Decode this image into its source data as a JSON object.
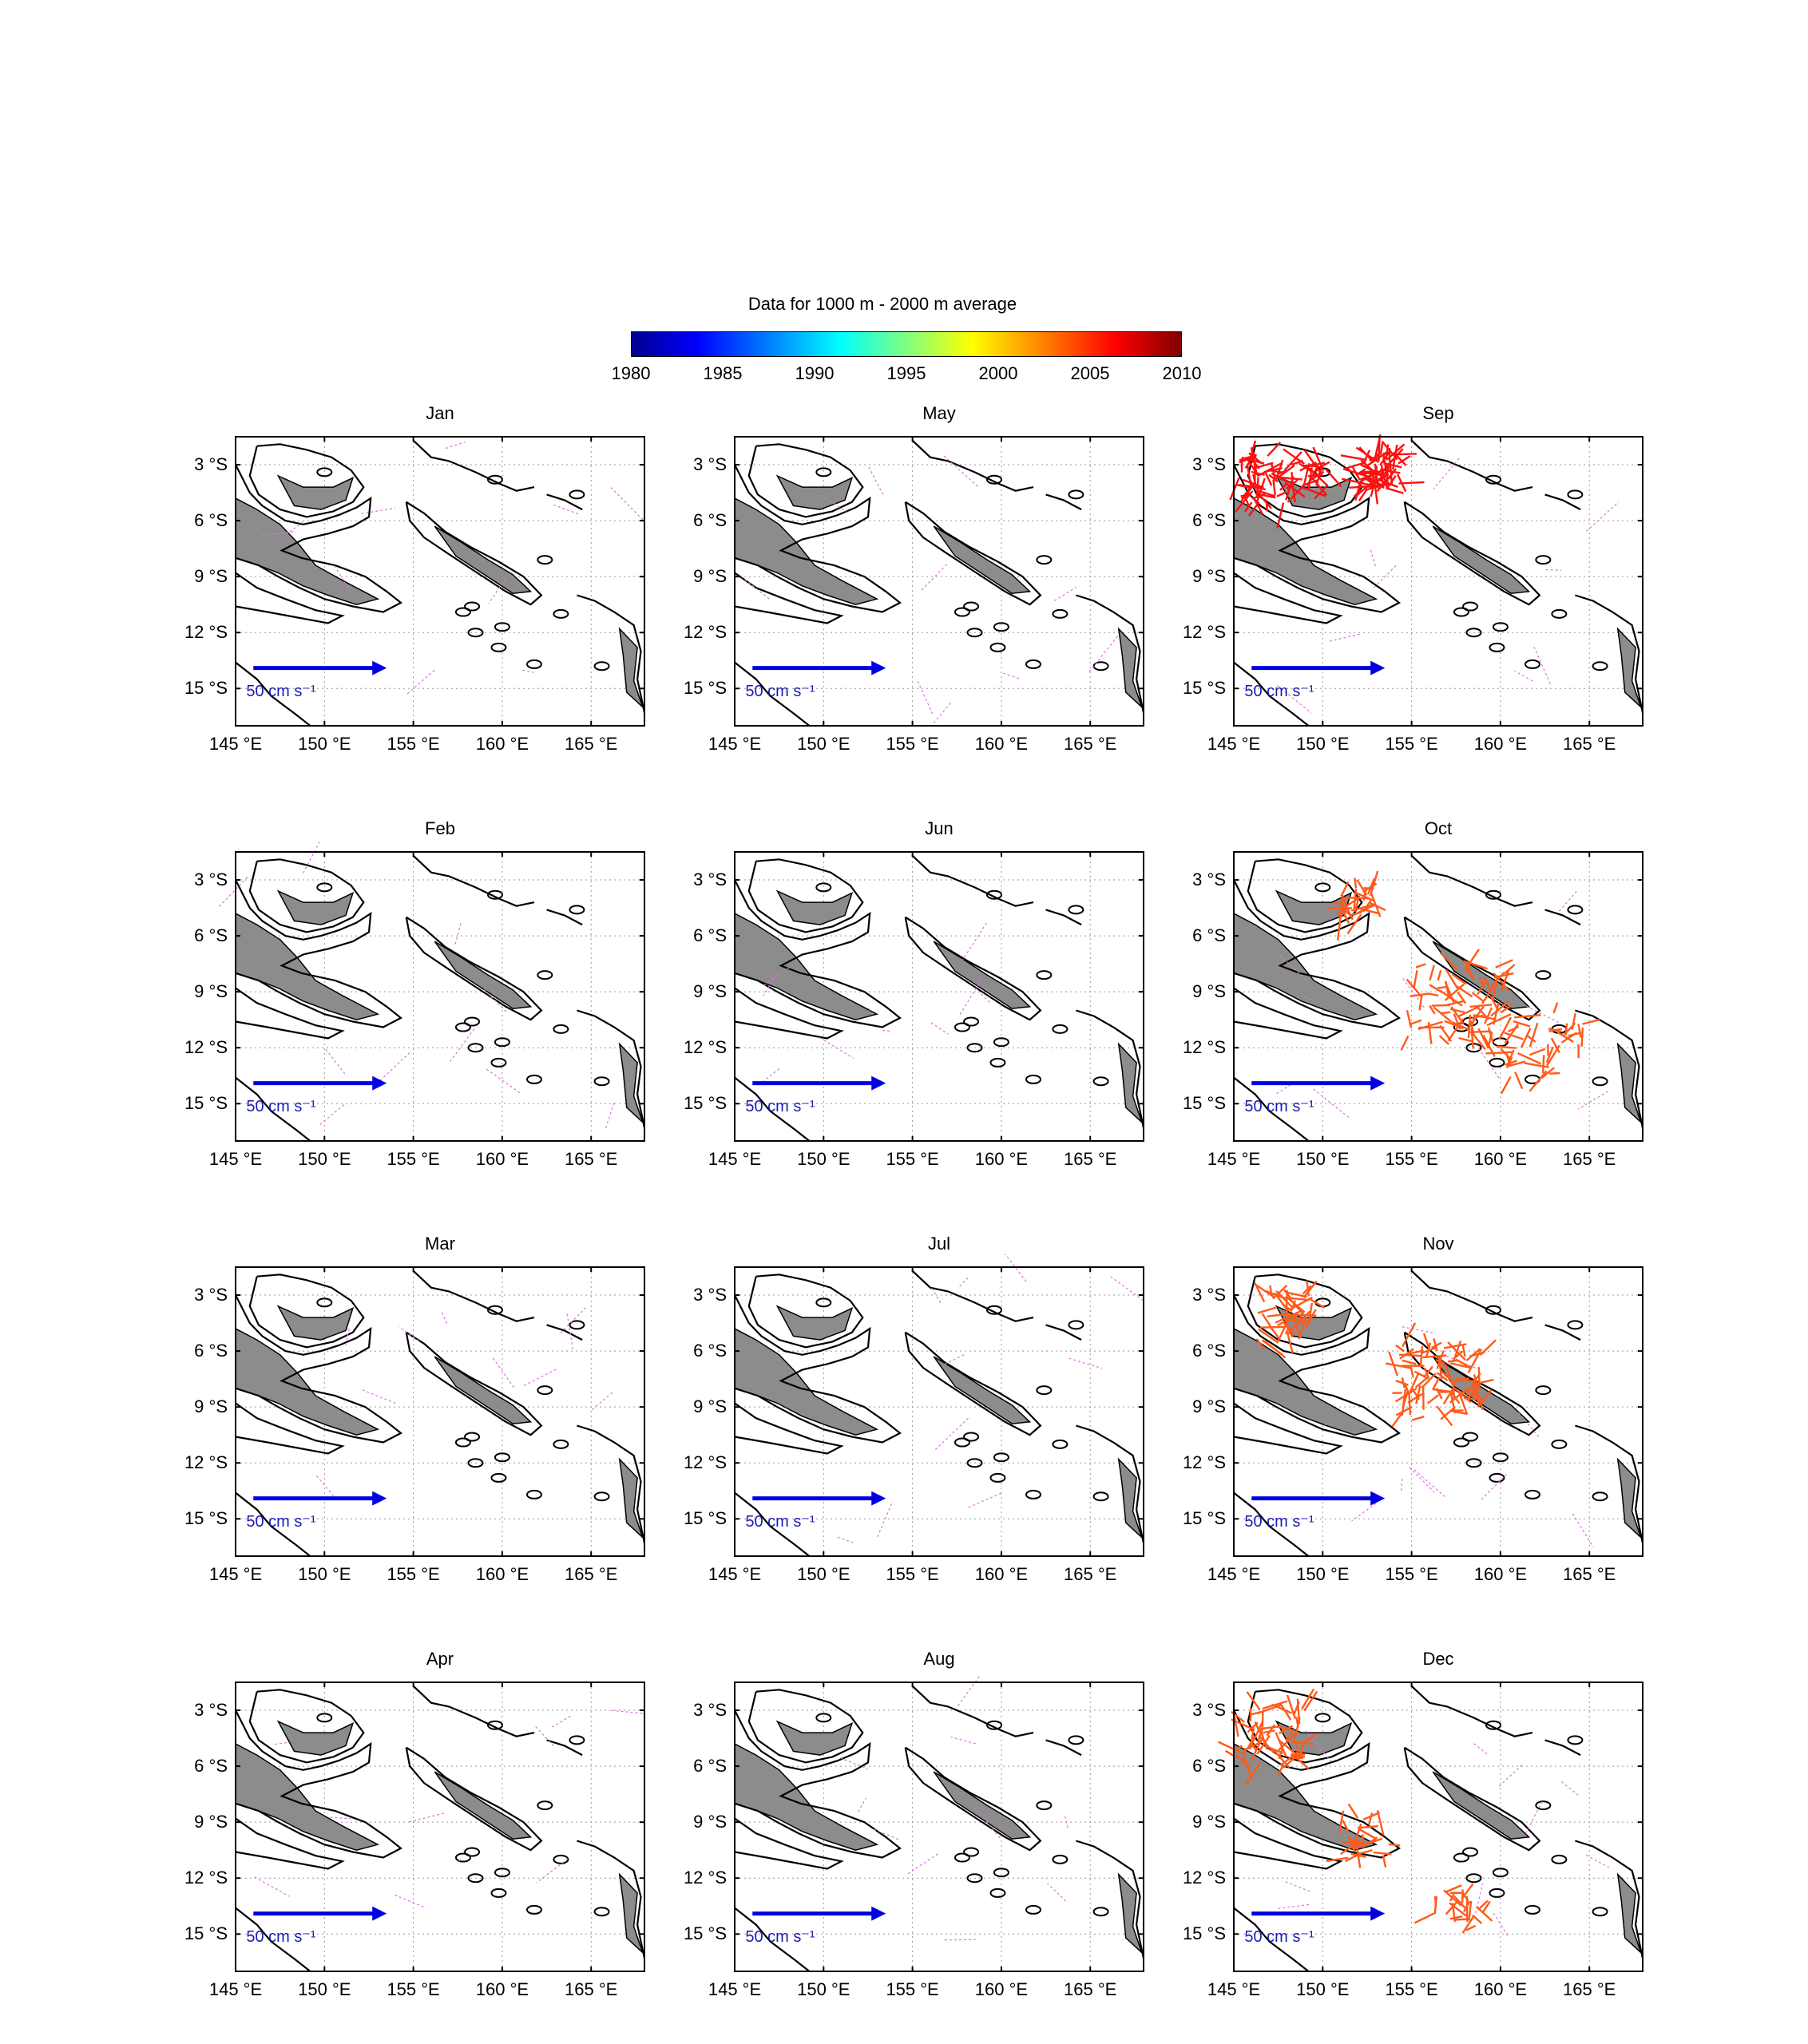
{
  "colorbar": {
    "title": "Data for 1000 m - 2000 m average",
    "ticks": [
      "1980",
      "1985",
      "1990",
      "1995",
      "2000",
      "2005",
      "2010"
    ],
    "range": [
      1980,
      2010
    ],
    "colors": [
      "#00008f",
      "#0000ff",
      "#00ffff",
      "#ffff00",
      "#ff0000",
      "#800000"
    ]
  },
  "axes": {
    "lat_labels": [
      "3 °S",
      "6 °S",
      "9 °S",
      "12 °S",
      "15 °S"
    ],
    "lon_labels": [
      "145 °E",
      "150 °E",
      "155 °E",
      "160 °E",
      "165 °E"
    ],
    "lon_range": [
      145,
      168
    ],
    "lat_range": [
      -1.5,
      -17
    ],
    "scale_vector_label": "50 cm s⁻¹"
  },
  "panels": [
    {
      "month": "Jan",
      "activity": "low",
      "color": "#e070e0"
    },
    {
      "month": "May",
      "activity": "low",
      "color": "#e070e0"
    },
    {
      "month": "Sep",
      "activity": "high",
      "color": "#ff1010"
    },
    {
      "month": "Feb",
      "activity": "low",
      "color": "#e070e0"
    },
    {
      "month": "Jun",
      "activity": "low",
      "color": "#e070e0"
    },
    {
      "month": "Oct",
      "activity": "high",
      "color": "#ff5a1a"
    },
    {
      "month": "Mar",
      "activity": "low",
      "color": "#e070e0"
    },
    {
      "month": "Jul",
      "activity": "low",
      "color": "#e070e0"
    },
    {
      "month": "Nov",
      "activity": "high",
      "color": "#ff5a1a"
    },
    {
      "month": "Apr",
      "activity": "low",
      "color": "#e070e0"
    },
    {
      "month": "Aug",
      "activity": "low",
      "color": "#e070e0"
    },
    {
      "month": "Dec",
      "activity": "high",
      "color": "#ff5a1a"
    }
  ]
}
